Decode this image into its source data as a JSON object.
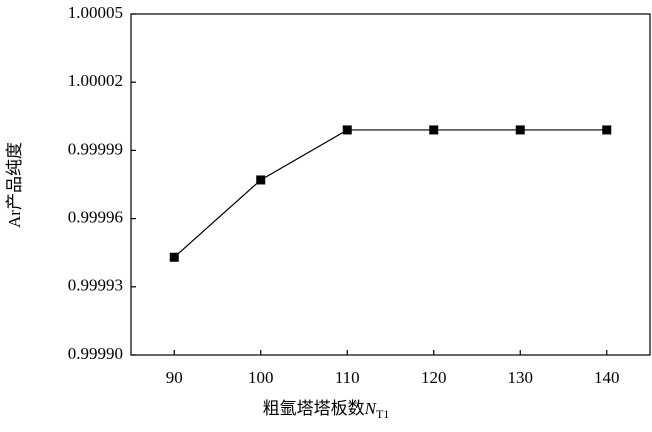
{
  "chart_data": {
    "type": "line",
    "xlabel": {
      "text": "粗氩塔塔板数",
      "symbol": "N",
      "subscript": "T1"
    },
    "ylabel": "Ar产品纯度",
    "x": [
      90,
      100,
      110,
      120,
      130,
      140
    ],
    "series": [
      {
        "color": "#000000",
        "marker": "square",
        "values": [
          0.999943,
          0.999977,
          0.999999,
          0.999999,
          0.999999,
          0.999999
        ]
      }
    ],
    "xlim": [
      85,
      145
    ],
    "xticks": [
      90,
      100,
      110,
      120,
      130,
      140
    ],
    "ylim": [
      0.9999,
      1.00005
    ],
    "yticks": [
      {
        "value": 0.9999,
        "label": "0.99990"
      },
      0.99993,
      0.99996,
      0.99999,
      1.00002,
      1.00005
    ],
    "grid": false
  }
}
